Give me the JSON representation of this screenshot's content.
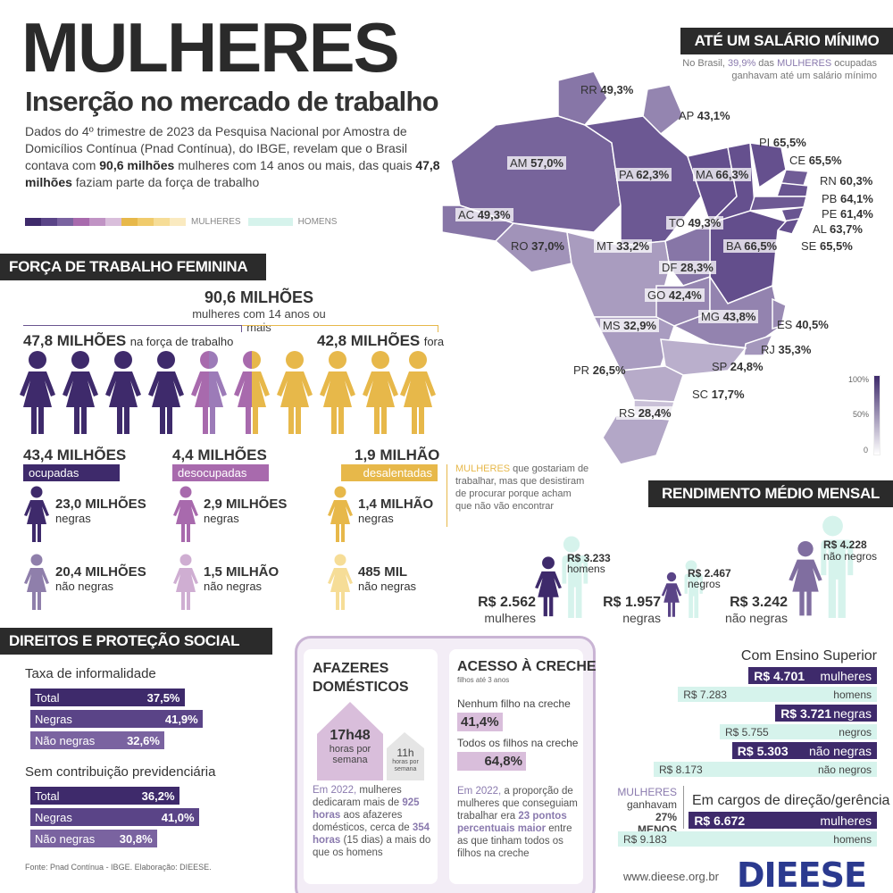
{
  "header": {
    "title": "MULHERES",
    "subtitle": "Inserção no mercado de trabalho",
    "intro_1": "Dados do 4º trimestre de 2023 da Pesquisa Nacional por Amostra de Domicílios Contínua (Pnad Contínua), do IBGE, revelam que o Brasil contava com ",
    "intro_b1": "90,6 milhões",
    "intro_2": " mulheres com 14 anos ou mais, das quais ",
    "intro_b2": "47,8 milhões",
    "intro_3": " faziam parte da força de trabalho",
    "legend_women": "MULHERES",
    "legend_men": "HOMENS"
  },
  "colors": {
    "dark_purple": "#3e2a6b",
    "mid_purple": "#6a5590",
    "light_purple": "#9c7bb8",
    "pink_purple": "#a86aad",
    "gold": "#e7b84a",
    "mint": "#d6f3ec"
  },
  "forca": {
    "section_title": "FORÇA DE TRABALHO FEMININA",
    "total": "90,6 MILHÕES",
    "total_sub": "mulheres com 14 anos ou mais",
    "in_force": "47,8 MILHÕES",
    "in_force_label": "na força de trabalho",
    "out_force": "42,8 MILHÕES",
    "out_force_label": "fora",
    "ocupadas_val": "43,4 MILHÕES",
    "ocupadas_label": "ocupadas",
    "desocupadas_val": "4,4 MILHÕES",
    "desocupadas_label": "desocupadas",
    "desalentadas_val": "1,9 MILHÃO",
    "desalentadas_label": "desalentadas",
    "desalento_note_hl": "MULHERES",
    "desalento_note": " que gostariam de trabalhar, mas que desistiram de procurar porque acham que não vão encontrar",
    "oc_negras": "23,0 MILHÕES",
    "oc_nao_negras": "20,4 MILHÕES",
    "des_negras": "2,9 MILHÕES",
    "des_nao_negras": "1,5 MILHÃO",
    "dal_negras": "1,4 MILHÃO",
    "dal_nao_negras": "485 MIL",
    "negras": "negras",
    "nao_negras": "não negras"
  },
  "direitos": {
    "section_title": "DIREITOS E PROTEÇÃO SOCIAL",
    "informal_title": "Taxa de informalidade",
    "informal": [
      {
        "label": "Total",
        "value": "37,5%",
        "pct": 37.5
      },
      {
        "label": "Negras",
        "value": "41,9%",
        "pct": 41.9
      },
      {
        "label": "Não negras",
        "value": "32,6%",
        "pct": 32.6
      }
    ],
    "contrib_title": "Sem contribuição previdenciária",
    "contrib": [
      {
        "label": "Total",
        "value": "36,2%",
        "pct": 36.2
      },
      {
        "label": "Negras",
        "value": "41,0%",
        "pct": 41.0
      },
      {
        "label": "Não negras",
        "value": "30,8%",
        "pct": 30.8
      }
    ],
    "source": "Fonte: Pnad Contínua - IBGE. Elaboração: DIEESE."
  },
  "afazeres": {
    "title": "AFAZERES DOMÉSTICOS",
    "women_hours": "17h48",
    "women_sub": "horas por semana",
    "men_hours": "11h",
    "men_sub": "horas por semana",
    "text_hl1": "Em 2022,",
    "text_1": " mulheres dedicaram mais de ",
    "text_b1": "925 horas",
    "text_2": " aos afazeres domésticos, cerca de ",
    "text_b2": "354 horas",
    "text_3": " (15 dias) a mais do que os homens"
  },
  "creche": {
    "title": "ACESSO À CRECHE",
    "sub": "filhos até 3 anos",
    "nenhum_label": "Nenhum filho na creche",
    "nenhum_value": "41,4%",
    "todos_label": "Todos os filhos na creche",
    "todos_value": "64,8%",
    "text_hl1": "Em 2022,",
    "text_1": " a proporção de mulheres que conseguiam trabalhar era ",
    "text_b1": "23 pontos percentuais maior",
    "text_2": " entre as que tinham todos os filhos na creche"
  },
  "salario": {
    "section_title": "ATÉ UM SALÁRIO MÍNIMO",
    "note_1": "No Brasil, ",
    "note_pct": "39,9%",
    "note_2": " das ",
    "note_hl": "MULHERES",
    "note_3": " ocupadas ganhavam até um salário mínimo",
    "scale_top": "100%",
    "scale_mid": "50%",
    "scale_bot": "0",
    "states": [
      {
        "uf": "RR",
        "value": "49,3%",
        "pct": 49.3
      },
      {
        "uf": "AP",
        "value": "43,1%",
        "pct": 43.1
      },
      {
        "uf": "AM",
        "value": "57,0%",
        "pct": 57.0
      },
      {
        "uf": "PA",
        "value": "62,3%",
        "pct": 62.3
      },
      {
        "uf": "MA",
        "value": "66,3%",
        "pct": 66.3
      },
      {
        "uf": "PI",
        "value": "65,5%",
        "pct": 65.5
      },
      {
        "uf": "CE",
        "value": "65,5%",
        "pct": 65.5
      },
      {
        "uf": "RN",
        "value": "60,3%",
        "pct": 60.3
      },
      {
        "uf": "PB",
        "value": "64,1%",
        "pct": 64.1
      },
      {
        "uf": "PE",
        "value": "61,4%",
        "pct": 61.4
      },
      {
        "uf": "AL",
        "value": "63,7%",
        "pct": 63.7
      },
      {
        "uf": "SE",
        "value": "65,5%",
        "pct": 65.5
      },
      {
        "uf": "BA",
        "value": "66,5%",
        "pct": 66.5
      },
      {
        "uf": "TO",
        "value": "49,3%",
        "pct": 49.3
      },
      {
        "uf": "AC",
        "value": "49,3%",
        "pct": 49.3
      },
      {
        "uf": "RO",
        "value": "37,0%",
        "pct": 37.0
      },
      {
        "uf": "MT",
        "value": "33,2%",
        "pct": 33.2
      },
      {
        "uf": "DF",
        "value": "28,3%",
        "pct": 28.3
      },
      {
        "uf": "GO",
        "value": "42,4%",
        "pct": 42.4
      },
      {
        "uf": "MG",
        "value": "43,8%",
        "pct": 43.8
      },
      {
        "uf": "MS",
        "value": "32,9%",
        "pct": 32.9
      },
      {
        "uf": "ES",
        "value": "40,5%",
        "pct": 40.5
      },
      {
        "uf": "RJ",
        "value": "35,3%",
        "pct": 35.3
      },
      {
        "uf": "SP",
        "value": "24,8%",
        "pct": 24.8
      },
      {
        "uf": "PR",
        "value": "26,5%",
        "pct": 26.5
      },
      {
        "uf": "SC",
        "value": "17,7%",
        "pct": 17.7
      },
      {
        "uf": "RS",
        "value": "28,4%",
        "pct": 28.4
      }
    ]
  },
  "rendimento": {
    "section_title": "RENDIMENTO MÉDIO MENSAL",
    "groups": [
      {
        "w_value": "R$ 2.562",
        "w_label": "mulheres",
        "m_value": "R$ 3.233",
        "m_label": "homens"
      },
      {
        "w_value": "R$ 1.957",
        "w_label": "negras",
        "m_value": "R$ 2.467",
        "m_label": "negros"
      },
      {
        "w_value": "R$ 3.242",
        "w_label": "não negras",
        "m_value": "R$ 4.228",
        "m_label": "não negros"
      }
    ],
    "superior_title": "Com Ensino Superior",
    "superior": [
      {
        "value": "R$ 4.701",
        "label": "mulheres",
        "kind": "w",
        "amount": 4701
      },
      {
        "value": "R$ 7.283",
        "label": "homens",
        "kind": "m",
        "amount": 7283
      },
      {
        "value": "R$ 3.721",
        "label": "negras",
        "kind": "w",
        "amount": 3721
      },
      {
        "value": "R$ 5.755",
        "label": "negros",
        "kind": "m",
        "amount": 5755
      },
      {
        "value": "R$ 5.303",
        "label": "não negras",
        "kind": "w",
        "amount": 5303
      },
      {
        "value": "R$ 8.173",
        "label": "não negros",
        "kind": "m",
        "amount": 8173
      }
    ],
    "gap_hl": "MULHERES",
    "gap_1": "ganhavam",
    "gap_2": "27% MENOS",
    "direcao_title": "Em cargos de direção/gerência",
    "direcao": [
      {
        "value": "R$ 6.672",
        "label": "mulheres",
        "kind": "w",
        "amount": 6672
      },
      {
        "value": "R$ 9.183",
        "label": "homens",
        "kind": "m",
        "amount": 9183
      }
    ]
  },
  "footer": {
    "site": "www.dieese.org.br",
    "logo": "DIEESE"
  }
}
